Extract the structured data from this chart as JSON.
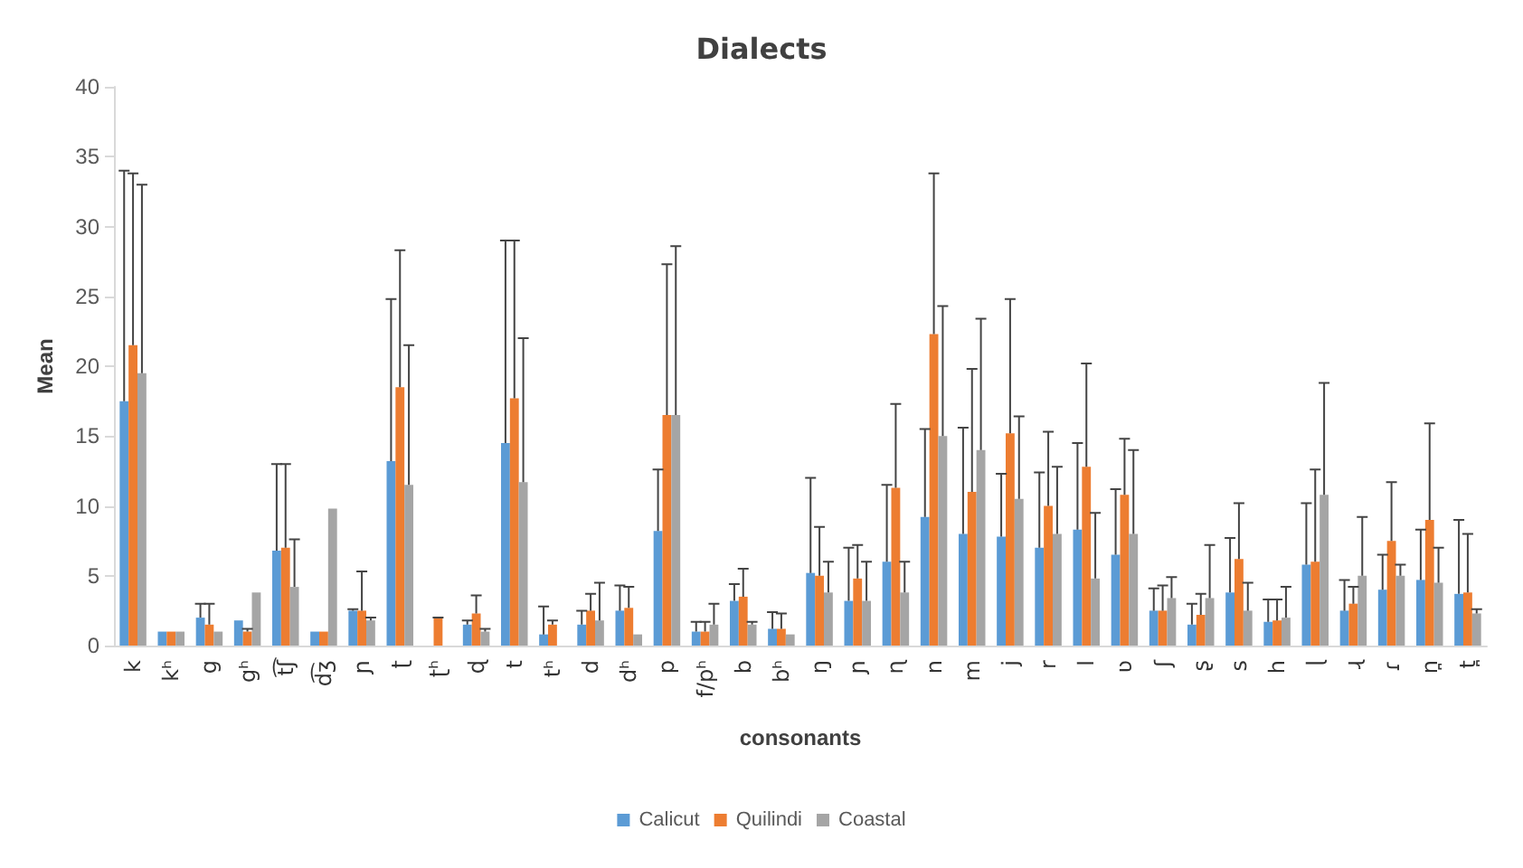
{
  "chart_data": {
    "type": "bar",
    "title": "Dialects",
    "xlabel": "consonants",
    "ylabel": "Mean",
    "categories": [
      "k",
      "kʰ",
      "g",
      "gʰ",
      "t͡ʃ",
      "d͡ʒ",
      "ɲ",
      "ʈ",
      "ʈʰ",
      "ɖ",
      "t",
      "tʰ",
      "d",
      "dʰ",
      "p",
      "f/pʰ",
      "b",
      "bʰ",
      "ŋ",
      "ɲ",
      "ɳ",
      "n",
      "m",
      "j",
      "r",
      "l",
      "ʋ",
      "ʃ",
      "ʂ",
      "s",
      "h",
      "ɭ",
      "ɻ",
      "ɾ",
      "n̪",
      "t̪"
    ],
    "ylim": [
      0,
      40
    ],
    "yticks": [
      0,
      5,
      10,
      15,
      20,
      25,
      30,
      35,
      40
    ],
    "grid": false,
    "legend": "bottom",
    "series": [
      {
        "name": "Calicut",
        "color": "#5b9bd5",
        "values": [
          17.5,
          1,
          2,
          1.8,
          6.8,
          1,
          2.5,
          13.2,
          0,
          1.5,
          14.5,
          0.8,
          1.5,
          2.5,
          8.2,
          1,
          3.2,
          1.2,
          5.2,
          3.2,
          6,
          9.2,
          8,
          7.8,
          7,
          8.3,
          6.5,
          2.5,
          1.5,
          3.8,
          1.7,
          5.8,
          2.5,
          4,
          4.7,
          3.7
        ],
        "errors": [
          [
            17.5,
            34
          ],
          null,
          [
            2,
            3
          ],
          null,
          [
            6.8,
            13
          ],
          null,
          [
            2.5,
            2.6
          ],
          [
            13.2,
            24.8
          ],
          null,
          [
            1.5,
            1.8
          ],
          [
            14.5,
            29
          ],
          [
            0.8,
            2.8
          ],
          [
            1.5,
            2.5
          ],
          [
            2.5,
            4.3
          ],
          [
            8.2,
            12.6
          ],
          [
            1,
            1.7
          ],
          [
            3.2,
            4.4
          ],
          [
            1.2,
            2.4
          ],
          [
            5.2,
            12
          ],
          [
            3.2,
            7
          ],
          [
            6,
            11.5
          ],
          [
            9.2,
            15.5
          ],
          [
            8,
            15.6
          ],
          [
            7.8,
            12.3
          ],
          [
            7,
            12.4
          ],
          [
            8.3,
            14.5
          ],
          [
            6.5,
            11.2
          ],
          [
            2.5,
            4.1
          ],
          [
            1.5,
            3
          ],
          [
            3.8,
            7.7
          ],
          [
            1.7,
            3.3
          ],
          [
            5.8,
            10.2
          ],
          [
            2.5,
            4.7
          ],
          [
            4,
            6.5
          ],
          [
            4.7,
            8.3
          ],
          [
            3.7,
            9
          ]
        ]
      },
      {
        "name": "Quilindi",
        "color": "#ed7d31",
        "values": [
          21.5,
          1,
          1.5,
          1,
          7,
          1,
          2.5,
          18.5,
          2,
          2.3,
          17.7,
          1.5,
          2.5,
          2.7,
          16.5,
          1,
          3.5,
          1.2,
          5,
          4.8,
          11.3,
          22.3,
          11,
          15.2,
          10,
          12.8,
          10.8,
          2.5,
          2.2,
          6.2,
          1.8,
          6,
          3,
          7.5,
          9,
          3.8
        ],
        "errors": [
          [
            21.5,
            33.8
          ],
          null,
          [
            1.5,
            3
          ],
          [
            1,
            1.2
          ],
          [
            7,
            13
          ],
          null,
          [
            2.5,
            5.3
          ],
          [
            18.5,
            28.3
          ],
          [
            2,
            2
          ],
          [
            2.3,
            3.6
          ],
          [
            17.7,
            29
          ],
          [
            1.5,
            1.8
          ],
          [
            2.5,
            3.7
          ],
          [
            2.7,
            4.2
          ],
          [
            16.5,
            27.3
          ],
          [
            1,
            1.7
          ],
          [
            3.5,
            5.5
          ],
          [
            1.2,
            2.3
          ],
          [
            5,
            8.5
          ],
          [
            4.8,
            7.2
          ],
          [
            11.3,
            17.3
          ],
          [
            22.3,
            33.8
          ],
          [
            11,
            19.8
          ],
          [
            15.2,
            24.8
          ],
          [
            10,
            15.3
          ],
          [
            12.8,
            20.2
          ],
          [
            10.8,
            14.8
          ],
          [
            2.5,
            4.3
          ],
          [
            2.2,
            3.7
          ],
          [
            6.2,
            10.2
          ],
          [
            1.8,
            3.3
          ],
          [
            6,
            12.6
          ],
          [
            3,
            4.2
          ],
          [
            7.5,
            11.7
          ],
          [
            9,
            15.9
          ],
          [
            3.8,
            8
          ]
        ]
      },
      {
        "name": "Coastal",
        "color": "#a5a5a5",
        "values": [
          19.5,
          1,
          1,
          3.8,
          4.2,
          9.8,
          1.8,
          11.5,
          0,
          1,
          11.7,
          0,
          1.8,
          0.8,
          16.5,
          1.5,
          1.5,
          0.8,
          3.8,
          3.2,
          3.8,
          15,
          14,
          10.5,
          8,
          4.8,
          8,
          3.4,
          3.4,
          2.5,
          2,
          10.8,
          5,
          5,
          4.5,
          2.3
        ],
        "errors": [
          [
            19.5,
            33
          ],
          null,
          null,
          null,
          [
            4.2,
            7.6
          ],
          null,
          [
            1.8,
            2
          ],
          [
            11.5,
            21.5
          ],
          null,
          [
            1,
            1.2
          ],
          [
            11.7,
            22
          ],
          null,
          [
            1.8,
            4.5
          ],
          null,
          [
            16.5,
            28.6
          ],
          [
            1.5,
            3
          ],
          [
            1.5,
            1.7
          ],
          null,
          [
            3.8,
            6
          ],
          [
            3.2,
            6
          ],
          [
            3.8,
            6
          ],
          [
            15,
            24.3
          ],
          [
            14,
            23.4
          ],
          [
            10.5,
            16.4
          ],
          [
            8,
            12.8
          ],
          [
            4.8,
            9.5
          ],
          [
            8,
            14
          ],
          [
            3.4,
            4.9
          ],
          [
            3.4,
            7.2
          ],
          [
            2.5,
            4.5
          ],
          [
            2,
            4.2
          ],
          [
            10.8,
            18.8
          ],
          [
            5,
            9.2
          ],
          [
            5,
            5.8
          ],
          [
            4.5,
            7
          ],
          [
            2.3,
            2.6
          ]
        ]
      }
    ]
  }
}
